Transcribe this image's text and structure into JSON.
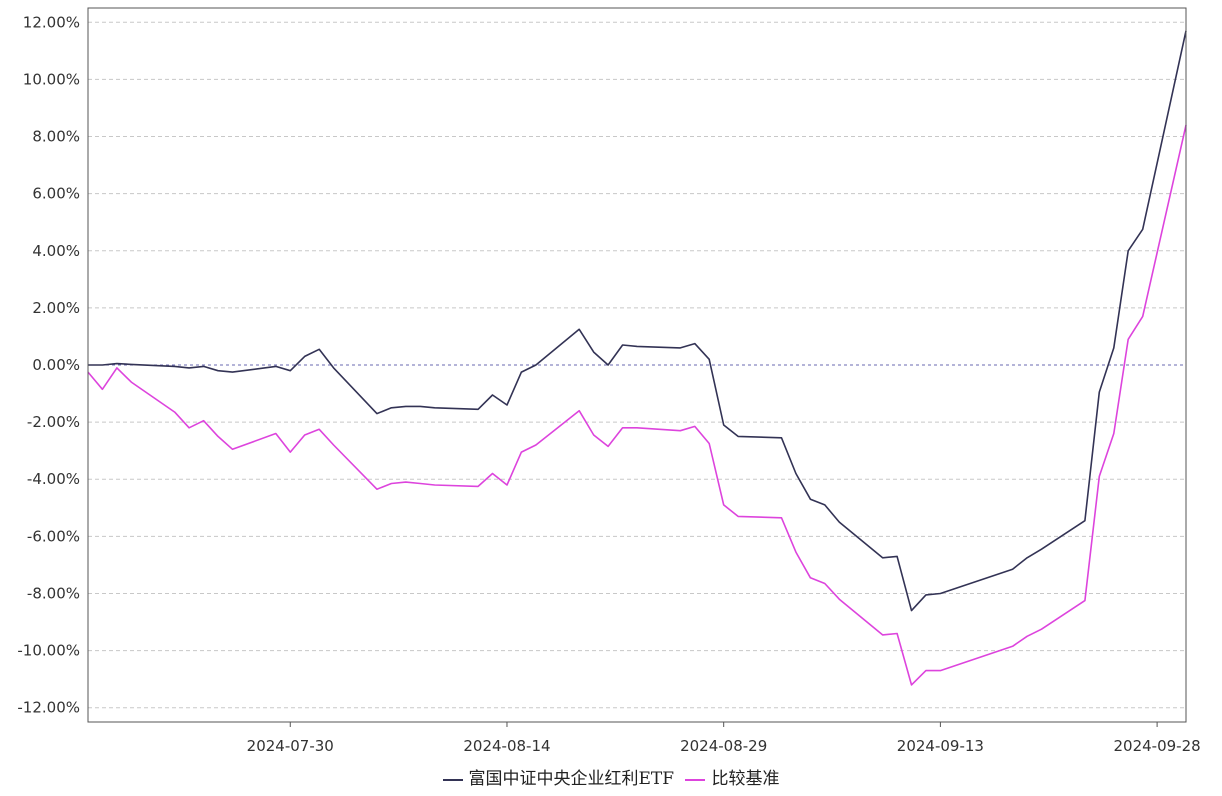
{
  "chart_data": {
    "type": "line",
    "title": "",
    "xlabel": "",
    "ylabel": "",
    "ylim": [
      -12.5,
      12.5
    ],
    "xlim": [
      "2024-07-16",
      "2024-09-30"
    ],
    "yticks": [
      "12.00%",
      "10.00%",
      "8.00%",
      "6.00%",
      "4.00%",
      "2.00%",
      "0.00%",
      "-2.00%",
      "-4.00%",
      "-6.00%",
      "-8.00%",
      "-10.00%",
      "-12.00%"
    ],
    "ytick_values": [
      12,
      10,
      8,
      6,
      4,
      2,
      0,
      -2,
      -4,
      -6,
      -8,
      -10,
      -12
    ],
    "xticks": [
      "2024-07-30",
      "2024-08-14",
      "2024-08-29",
      "2024-09-13",
      "2024-09-28"
    ],
    "grid": true,
    "legend_position": "bottom-center",
    "series": [
      {
        "name": "富国中证中央企业红利ETF",
        "color": "#333355",
        "points": [
          [
            "2024-07-16",
            0.0
          ],
          [
            "2024-07-17",
            0.0
          ],
          [
            "2024-07-18",
            0.05
          ],
          [
            "2024-07-19",
            0.02
          ],
          [
            "2024-07-22",
            -0.05
          ],
          [
            "2024-07-23",
            -0.1
          ],
          [
            "2024-07-24",
            -0.05
          ],
          [
            "2024-07-25",
            -0.2
          ],
          [
            "2024-07-26",
            -0.25
          ],
          [
            "2024-07-29",
            -0.05
          ],
          [
            "2024-07-30",
            -0.2
          ],
          [
            "2024-07-31",
            0.3
          ],
          [
            "2024-08-01",
            0.55
          ],
          [
            "2024-08-02",
            -0.1
          ],
          [
            "2024-08-05",
            -1.7
          ],
          [
            "2024-08-06",
            -1.5
          ],
          [
            "2024-08-07",
            -1.45
          ],
          [
            "2024-08-08",
            -1.45
          ],
          [
            "2024-08-09",
            -1.5
          ],
          [
            "2024-08-12",
            -1.55
          ],
          [
            "2024-08-13",
            -1.05
          ],
          [
            "2024-08-14",
            -1.4
          ],
          [
            "2024-08-15",
            -0.25
          ],
          [
            "2024-08-16",
            0.0
          ],
          [
            "2024-08-19",
            1.25
          ],
          [
            "2024-08-20",
            0.45
          ],
          [
            "2024-08-21",
            0.0
          ],
          [
            "2024-08-22",
            0.7
          ],
          [
            "2024-08-23",
            0.65
          ],
          [
            "2024-08-26",
            0.6
          ],
          [
            "2024-08-27",
            0.75
          ],
          [
            "2024-08-28",
            0.2
          ],
          [
            "2024-08-29",
            -2.1
          ],
          [
            "2024-08-30",
            -2.5
          ],
          [
            "2024-09-02",
            -2.55
          ],
          [
            "2024-09-03",
            -3.8
          ],
          [
            "2024-09-04",
            -4.7
          ],
          [
            "2024-09-05",
            -4.9
          ],
          [
            "2024-09-06",
            -5.5
          ],
          [
            "2024-09-09",
            -6.75
          ],
          [
            "2024-09-10",
            -6.7
          ],
          [
            "2024-09-11",
            -8.6
          ],
          [
            "2024-09-12",
            -8.05
          ],
          [
            "2024-09-13",
            -8.0
          ],
          [
            "2024-09-18",
            -7.15
          ],
          [
            "2024-09-19",
            -6.75
          ],
          [
            "2024-09-20",
            -6.45
          ],
          [
            "2024-09-23",
            -5.45
          ],
          [
            "2024-09-24",
            -0.95
          ],
          [
            "2024-09-25",
            0.6
          ],
          [
            "2024-09-26",
            4.0
          ],
          [
            "2024-09-27",
            4.75
          ],
          [
            "2024-09-30",
            11.7
          ]
        ]
      },
      {
        "name": "比较基准",
        "color": "#dd44dd",
        "points": [
          [
            "2024-07-16",
            -0.25
          ],
          [
            "2024-07-17",
            -0.85
          ],
          [
            "2024-07-18",
            -0.1
          ],
          [
            "2024-07-19",
            -0.6
          ],
          [
            "2024-07-22",
            -1.65
          ],
          [
            "2024-07-23",
            -2.2
          ],
          [
            "2024-07-24",
            -1.95
          ],
          [
            "2024-07-25",
            -2.5
          ],
          [
            "2024-07-26",
            -2.95
          ],
          [
            "2024-07-29",
            -2.4
          ],
          [
            "2024-07-30",
            -3.05
          ],
          [
            "2024-07-31",
            -2.45
          ],
          [
            "2024-08-01",
            -2.25
          ],
          [
            "2024-08-02",
            -2.8
          ],
          [
            "2024-08-05",
            -4.35
          ],
          [
            "2024-08-06",
            -4.15
          ],
          [
            "2024-08-07",
            -4.1
          ],
          [
            "2024-08-08",
            -4.15
          ],
          [
            "2024-08-09",
            -4.2
          ],
          [
            "2024-08-12",
            -4.25
          ],
          [
            "2024-08-13",
            -3.8
          ],
          [
            "2024-08-14",
            -4.2
          ],
          [
            "2024-08-15",
            -3.05
          ],
          [
            "2024-08-16",
            -2.8
          ],
          [
            "2024-08-19",
            -1.6
          ],
          [
            "2024-08-20",
            -2.45
          ],
          [
            "2024-08-21",
            -2.85
          ],
          [
            "2024-08-22",
            -2.2
          ],
          [
            "2024-08-23",
            -2.2
          ],
          [
            "2024-08-26",
            -2.3
          ],
          [
            "2024-08-27",
            -2.15
          ],
          [
            "2024-08-28",
            -2.75
          ],
          [
            "2024-08-29",
            -4.9
          ],
          [
            "2024-08-30",
            -5.3
          ],
          [
            "2024-09-02",
            -5.35
          ],
          [
            "2024-09-03",
            -6.55
          ],
          [
            "2024-09-04",
            -7.45
          ],
          [
            "2024-09-05",
            -7.65
          ],
          [
            "2024-09-06",
            -8.2
          ],
          [
            "2024-09-09",
            -9.45
          ],
          [
            "2024-09-10",
            -9.4
          ],
          [
            "2024-09-11",
            -11.2
          ],
          [
            "2024-09-12",
            -10.7
          ],
          [
            "2024-09-13",
            -10.7
          ],
          [
            "2024-09-18",
            -9.85
          ],
          [
            "2024-09-19",
            -9.5
          ],
          [
            "2024-09-20",
            -9.25
          ],
          [
            "2024-09-23",
            -8.25
          ],
          [
            "2024-09-24",
            -3.9
          ],
          [
            "2024-09-25",
            -2.4
          ],
          [
            "2024-09-26",
            0.9
          ],
          [
            "2024-09-27",
            1.7
          ],
          [
            "2024-09-30",
            8.4
          ]
        ]
      }
    ]
  }
}
